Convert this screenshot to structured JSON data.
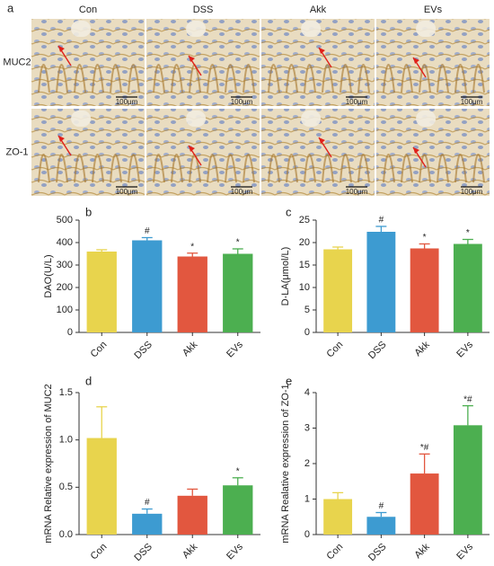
{
  "panel_a": {
    "label": "a",
    "columns": [
      "Con",
      "DSS",
      "Akk",
      "EVs"
    ],
    "rows": [
      "MUC2",
      "ZO-1"
    ],
    "scale_bar": "100μm"
  },
  "chart_data": [
    {
      "type": "bar",
      "label": "b",
      "y_label": "DAO(U/L)",
      "categories": [
        "Con",
        "DSS",
        "Akk",
        "EVs"
      ],
      "values": [
        360,
        410,
        338,
        350
      ],
      "errors": [
        8,
        12,
        15,
        22
      ],
      "sig_labels": [
        null,
        "#",
        "*",
        "*"
      ],
      "colors": [
        "#e8d44d",
        "#3d9bd1",
        "#e2573f",
        "#4caf50"
      ],
      "ylim": [
        0,
        500
      ],
      "yticks": [
        0,
        100,
        200,
        300,
        400,
        500
      ]
    },
    {
      "type": "bar",
      "label": "c",
      "y_label": "D-LA(μmol/L)",
      "categories": [
        "Con",
        "DSS",
        "Akk",
        "EVs"
      ],
      "values": [
        18.5,
        22.4,
        18.7,
        19.7
      ],
      "errors": [
        0.5,
        1.2,
        1.0,
        1.0
      ],
      "sig_labels": [
        null,
        "#",
        "*",
        "*"
      ],
      "colors": [
        "#e8d44d",
        "#3d9bd1",
        "#e2573f",
        "#4caf50"
      ],
      "ylim": [
        0,
        25
      ],
      "yticks": [
        0,
        5,
        10,
        15,
        20,
        25
      ]
    },
    {
      "type": "bar",
      "label": "d",
      "y_label": "mRNA Relative expression of MUC2",
      "categories": [
        "Con",
        "DSS",
        "Akk",
        "EVs"
      ],
      "values": [
        1.02,
        0.22,
        0.41,
        0.52
      ],
      "errors": [
        0.33,
        0.05,
        0.07,
        0.08
      ],
      "sig_labels": [
        null,
        "#",
        null,
        "*"
      ],
      "colors": [
        "#e8d44d",
        "#3d9bd1",
        "#e2573f",
        "#4caf50"
      ],
      "ylim": [
        0,
        1.5
      ],
      "yticks": [
        {
          "value": 0,
          "label": "0.0"
        },
        {
          "value": 0.5,
          "label": "0.5"
        },
        {
          "value": 1,
          "label": "1.0"
        },
        {
          "value": 1.5,
          "label": "1.5"
        }
      ]
    },
    {
      "type": "bar",
      "label": "e",
      "y_label": "mRNA Realative expression of ZO-1",
      "categories": [
        "Con",
        "DSS",
        "Akk",
        "EVs"
      ],
      "values": [
        1.0,
        0.5,
        1.72,
        3.08
      ],
      "errors": [
        0.18,
        0.12,
        0.55,
        0.55
      ],
      "sig_labels": [
        null,
        "#",
        "*#",
        "*#"
      ],
      "colors": [
        "#e8d44d",
        "#3d9bd1",
        "#e2573f",
        "#4caf50"
      ],
      "ylim": [
        0,
        4
      ],
      "yticks": [
        0,
        1,
        2,
        3,
        4
      ]
    }
  ]
}
